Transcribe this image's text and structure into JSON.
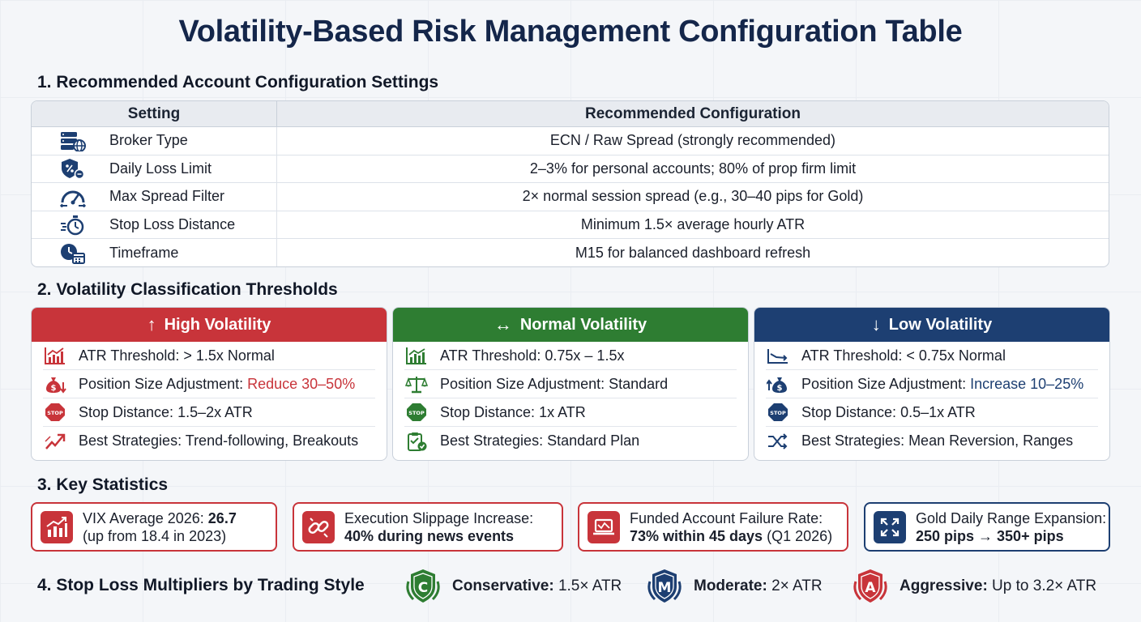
{
  "title": "Volatility-Based Risk Management Configuration Table",
  "section1": {
    "title": "1. Recommended Account Configuration Settings",
    "col_setting": "Setting",
    "col_config": "Recommended Configuration",
    "rows": [
      {
        "setting": "Broker Type",
        "config": "ECN / Raw Spread (strongly recommended)",
        "icon": "server-globe-icon"
      },
      {
        "setting": "Daily Loss Limit",
        "config": "2–3% for personal accounts; 80% of prop firm limit",
        "icon": "shield-percent-icon"
      },
      {
        "setting": "Max Spread Filter",
        "config": "2× normal session spread (e.g., 30–40 pips for Gold)",
        "icon": "gauge-icon"
      },
      {
        "setting": "Stop Loss Distance",
        "config": "Minimum 1.5× average hourly ATR",
        "icon": "stopwatch-icon"
      },
      {
        "setting": "Timeframe",
        "config": "M15 for balanced dashboard refresh",
        "icon": "clock-calendar-icon"
      }
    ]
  },
  "section2": {
    "title": "2. Volatility Classification Thresholds",
    "high": {
      "title": "High Volatility",
      "atr": "ATR Threshold: > 1.5x Normal",
      "pos_prefix": "Position Size Adjustment: ",
      "pos_value": "Reduce 30–50%",
      "stop": "Stop Distance: 1.5–2x ATR",
      "strat": "Best Strategies: Trend-following, Breakouts",
      "color": "#c8343a"
    },
    "normal": {
      "title": "Normal Volatility",
      "atr": "ATR Threshold: 0.75x – 1.5x",
      "pos_prefix": "Position Size Adjustment: ",
      "pos_value": "Standard",
      "stop": "Stop Distance: 1x ATR",
      "strat": "Best Strategies: Standard Plan",
      "color": "#2e7d32"
    },
    "low": {
      "title": "Low Volatility",
      "atr": "ATR Threshold: < 0.75x Normal",
      "pos_prefix": "Position Size Adjustment: ",
      "pos_value": "Increase 10–25%",
      "stop": "Stop Distance: 0.5–1x ATR",
      "strat": "Best Strategies: Mean Reversion, Ranges",
      "color": "#1d3f72"
    },
    "stop_label": "STOP"
  },
  "section3": {
    "title": "3. Key Statistics",
    "stats": [
      {
        "line1_prefix": "VIX Average 2026: ",
        "line1_bold": "26.7",
        "line2_bold": "",
        "line2_rest": "(up from 18.4 in 2023)",
        "icon": "trend-chart-icon"
      },
      {
        "line1_prefix": "Execution Slippage Increase:",
        "line1_bold": "",
        "line2_bold": "40% during news events",
        "line2_rest": "",
        "icon": "broken-link-icon"
      },
      {
        "line1_prefix": "Funded Account Failure Rate:",
        "line1_bold": "",
        "line2_bold": "73% within 45 days",
        "line2_rest": " (Q1 2026)",
        "icon": "laptop-chart-icon"
      },
      {
        "line1_prefix": "Gold Daily Range Expansion:",
        "line1_bold": "",
        "line2_bold": "250 pips → 350+ pips",
        "line2_rest": "",
        "icon": "expand-arrows-icon"
      }
    ]
  },
  "section4": {
    "title": "4. Stop Loss Multipliers by Trading Style",
    "items": [
      {
        "letter": "C",
        "label": "Conservative:",
        "value": " 1.5× ATR",
        "color": "#2e7d32",
        "icon": "conservative-badge-icon"
      },
      {
        "letter": "M",
        "label": "Moderate:",
        "value": " 2× ATR",
        "color": "#1d3f72",
        "icon": "moderate-badge-icon"
      },
      {
        "letter": "A",
        "label": "Aggressive:",
        "value": " Up to 3.2× ATR",
        "color": "#c8343a",
        "icon": "aggressive-badge-icon"
      }
    ]
  }
}
